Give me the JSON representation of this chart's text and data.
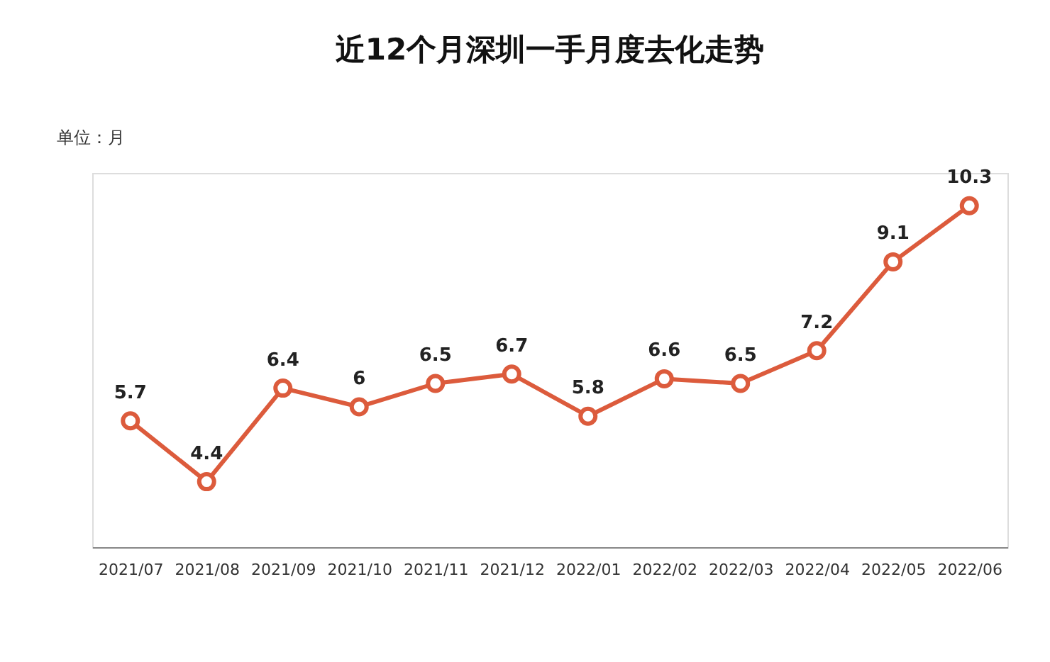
{
  "chart_data": {
    "type": "line",
    "title": "近12个月深圳一手月度去化走势",
    "annotations": [
      "单位：月"
    ],
    "categories": [
      "2021/07",
      "2021/08",
      "2021/09",
      "2021/10",
      "2021/11",
      "2021/12",
      "2022/01",
      "2022/02",
      "2022/03",
      "2022/04",
      "2022/05",
      "2022/06"
    ],
    "series": [
      {
        "color": "#dc5b3c",
        "values": [
          5.7,
          4.4,
          6.4,
          6,
          6.5,
          6.7,
          5.8,
          6.6,
          6.5,
          7.2,
          9.1,
          10.3
        ]
      }
    ],
    "data_labels": true,
    "marker": "circle",
    "line_style": "solid",
    "grid": false
  }
}
